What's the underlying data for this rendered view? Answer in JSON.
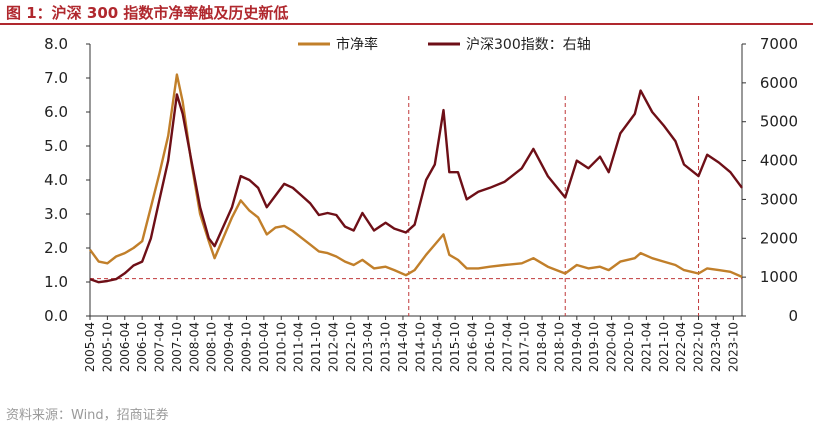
{
  "title": "图 1：沪深 300 指数市净率触及历史新低",
  "source": "资料来源：Wind，招商证券",
  "colors": {
    "pb": "#c17f2a",
    "index": "#6e0f17",
    "ref": "#c0393b",
    "title": "#b0282e"
  },
  "chart_data": {
    "type": "line",
    "title": "沪深 300 指数市净率触及历史新低",
    "legend": {
      "placement": "top-center",
      "entries": [
        "市净率",
        "沪深300指数：右轴"
      ]
    },
    "y_left": {
      "range": [
        0.0,
        8.0
      ],
      "ticks": [
        "0.0",
        "1.0",
        "2.0",
        "3.0",
        "4.0",
        "5.0",
        "6.0",
        "7.0",
        "8.0"
      ]
    },
    "y_right": {
      "range": [
        0,
        7000
      ],
      "ticks": [
        "0",
        "1000",
        "2000",
        "3000",
        "4000",
        "5000",
        "6000",
        "7000"
      ]
    },
    "x_ticks": [
      "2005-04",
      "2005-10",
      "2006-04",
      "2006-10",
      "2007-04",
      "2007-10",
      "2008-04",
      "2008-10",
      "2009-04",
      "2009-10",
      "2010-04",
      "2010-10",
      "2011-04",
      "2011-10",
      "2012-04",
      "2012-10",
      "2013-04",
      "2013-10",
      "2014-04",
      "2014-10",
      "2015-04",
      "2015-10",
      "2016-04",
      "2016-10",
      "2017-04",
      "2017-10",
      "2018-04",
      "2018-10",
      "2019-04",
      "2019-10",
      "2020-04",
      "2020-10",
      "2021-04",
      "2021-10",
      "2022-04",
      "2022-10",
      "2023-04",
      "2023-10"
    ],
    "x_range": [
      "2005-04",
      "2024-01"
    ],
    "reference_line": {
      "axis": "left",
      "value": 1.1,
      "style": "dashed"
    },
    "vertical_markers": [
      "2014-06",
      "2018-12",
      "2022-10"
    ],
    "series": [
      {
        "name": "市净率",
        "axis": "left",
        "points": [
          [
            "2005-04",
            1.95
          ],
          [
            "2005-07",
            1.6
          ],
          [
            "2005-10",
            1.55
          ],
          [
            "2006-01",
            1.75
          ],
          [
            "2006-04",
            1.85
          ],
          [
            "2006-07",
            2.0
          ],
          [
            "2006-10",
            2.2
          ],
          [
            "2007-01",
            3.2
          ],
          [
            "2007-04",
            4.2
          ],
          [
            "2007-07",
            5.3
          ],
          [
            "2007-10",
            7.1
          ],
          [
            "2007-12",
            6.3
          ],
          [
            "2008-03",
            4.5
          ],
          [
            "2008-06",
            3.0
          ],
          [
            "2008-09",
            2.2
          ],
          [
            "2008-11",
            1.7
          ],
          [
            "2009-02",
            2.3
          ],
          [
            "2009-05",
            2.9
          ],
          [
            "2009-08",
            3.4
          ],
          [
            "2009-11",
            3.1
          ],
          [
            "2010-02",
            2.9
          ],
          [
            "2010-05",
            2.4
          ],
          [
            "2010-08",
            2.6
          ],
          [
            "2010-11",
            2.65
          ],
          [
            "2011-02",
            2.5
          ],
          [
            "2011-05",
            2.3
          ],
          [
            "2011-08",
            2.1
          ],
          [
            "2011-11",
            1.9
          ],
          [
            "2012-02",
            1.85
          ],
          [
            "2012-05",
            1.75
          ],
          [
            "2012-08",
            1.6
          ],
          [
            "2012-11",
            1.5
          ],
          [
            "2013-02",
            1.65
          ],
          [
            "2013-06",
            1.4
          ],
          [
            "2013-10",
            1.45
          ],
          [
            "2014-01",
            1.35
          ],
          [
            "2014-05",
            1.2
          ],
          [
            "2014-08",
            1.35
          ],
          [
            "2014-12",
            1.8
          ],
          [
            "2015-03",
            2.1
          ],
          [
            "2015-06",
            2.4
          ],
          [
            "2015-08",
            1.8
          ],
          [
            "2015-11",
            1.65
          ],
          [
            "2016-02",
            1.4
          ],
          [
            "2016-06",
            1.4
          ],
          [
            "2016-10",
            1.45
          ],
          [
            "2017-03",
            1.5
          ],
          [
            "2017-09",
            1.55
          ],
          [
            "2018-01",
            1.7
          ],
          [
            "2018-06",
            1.45
          ],
          [
            "2018-12",
            1.25
          ],
          [
            "2019-04",
            1.5
          ],
          [
            "2019-08",
            1.4
          ],
          [
            "2019-12",
            1.45
          ],
          [
            "2020-03",
            1.35
          ],
          [
            "2020-07",
            1.6
          ],
          [
            "2020-12",
            1.7
          ],
          [
            "2021-02",
            1.85
          ],
          [
            "2021-06",
            1.7
          ],
          [
            "2021-10",
            1.6
          ],
          [
            "2022-02",
            1.5
          ],
          [
            "2022-05",
            1.35
          ],
          [
            "2022-10",
            1.25
          ],
          [
            "2023-01",
            1.4
          ],
          [
            "2023-05",
            1.35
          ],
          [
            "2023-09",
            1.3
          ],
          [
            "2024-01",
            1.15
          ]
        ]
      },
      {
        "name": "沪深300指数：右轴",
        "axis": "right",
        "points": [
          [
            "2005-04",
            950
          ],
          [
            "2005-07",
            870
          ],
          [
            "2005-10",
            900
          ],
          [
            "2006-01",
            950
          ],
          [
            "2006-04",
            1100
          ],
          [
            "2006-07",
            1300
          ],
          [
            "2006-10",
            1400
          ],
          [
            "2007-01",
            2000
          ],
          [
            "2007-04",
            3000
          ],
          [
            "2007-07",
            4000
          ],
          [
            "2007-10",
            5700
          ],
          [
            "2007-12",
            5200
          ],
          [
            "2008-03",
            4000
          ],
          [
            "2008-06",
            2800
          ],
          [
            "2008-09",
            2000
          ],
          [
            "2008-11",
            1800
          ],
          [
            "2009-02",
            2300
          ],
          [
            "2009-05",
            2800
          ],
          [
            "2009-08",
            3600
          ],
          [
            "2009-11",
            3500
          ],
          [
            "2010-02",
            3300
          ],
          [
            "2010-05",
            2800
          ],
          [
            "2010-08",
            3100
          ],
          [
            "2010-11",
            3400
          ],
          [
            "2011-02",
            3300
          ],
          [
            "2011-05",
            3100
          ],
          [
            "2011-08",
            2900
          ],
          [
            "2011-11",
            2600
          ],
          [
            "2012-02",
            2650
          ],
          [
            "2012-05",
            2600
          ],
          [
            "2012-08",
            2300
          ],
          [
            "2012-11",
            2200
          ],
          [
            "2013-02",
            2650
          ],
          [
            "2013-06",
            2200
          ],
          [
            "2013-10",
            2400
          ],
          [
            "2014-01",
            2250
          ],
          [
            "2014-05",
            2150
          ],
          [
            "2014-08",
            2350
          ],
          [
            "2014-12",
            3500
          ],
          [
            "2015-03",
            3900
          ],
          [
            "2015-06",
            5300
          ],
          [
            "2015-08",
            3700
          ],
          [
            "2015-11",
            3700
          ],
          [
            "2016-02",
            3000
          ],
          [
            "2016-06",
            3200
          ],
          [
            "2016-10",
            3300
          ],
          [
            "2017-03",
            3450
          ],
          [
            "2017-09",
            3800
          ],
          [
            "2018-01",
            4300
          ],
          [
            "2018-06",
            3600
          ],
          [
            "2018-12",
            3050
          ],
          [
            "2019-04",
            4000
          ],
          [
            "2019-08",
            3800
          ],
          [
            "2019-12",
            4100
          ],
          [
            "2020-03",
            3700
          ],
          [
            "2020-07",
            4700
          ],
          [
            "2020-12",
            5200
          ],
          [
            "2021-02",
            5800
          ],
          [
            "2021-06",
            5250
          ],
          [
            "2021-10",
            4900
          ],
          [
            "2022-02",
            4500
          ],
          [
            "2022-05",
            3900
          ],
          [
            "2022-10",
            3600
          ],
          [
            "2023-01",
            4150
          ],
          [
            "2023-05",
            3950
          ],
          [
            "2023-09",
            3700
          ],
          [
            "2024-01",
            3300
          ]
        ]
      }
    ]
  }
}
